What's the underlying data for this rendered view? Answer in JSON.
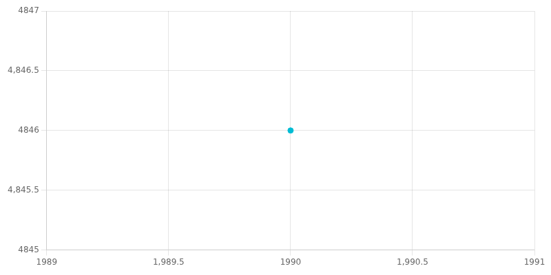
{
  "chart_data": {
    "type": "scatter",
    "x": [
      1990
    ],
    "values": [
      4846
    ],
    "color": "#00BCD4",
    "xlim": [
      1989,
      1991
    ],
    "xticks": [
      1989,
      {
        "value": 1989.5,
        "label": "1,989.5"
      },
      1990,
      {
        "value": 1990.5,
        "label": "1,990.5"
      },
      1991
    ],
    "ylim": [
      4845,
      4847
    ],
    "yticks": [
      4845,
      {
        "value": 4845.5,
        "label": "4,845.5"
      },
      4846,
      {
        "value": 4846.5,
        "label": "4,846.5"
      },
      4847
    ],
    "grid": true
  }
}
